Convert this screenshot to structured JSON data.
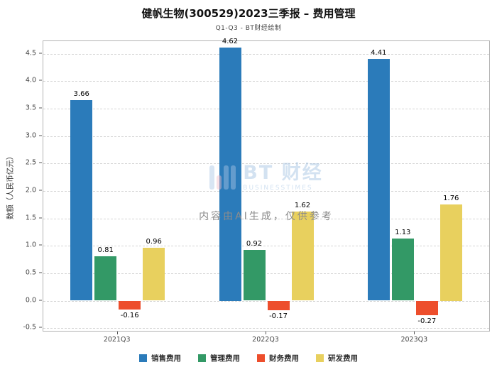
{
  "header": {
    "title": "健帆生物(300529)2023三季报 – 费用管理",
    "subtitle": "Q1-Q3 - BT财经绘制"
  },
  "watermark": {
    "brand": "BT 财经",
    "brand_sub": "BUSINESSTIMES",
    "disclaimer": "内容由AI生成，仅供参考"
  },
  "chart_data": {
    "type": "bar",
    "title": "健帆生物(300529)2023三季报 – 费用管理",
    "subtitle": "Q1-Q3 - BT财经绘制",
    "xlabel": "",
    "ylabel": "数额（人民币亿元）",
    "categories": [
      "2021Q3",
      "2022Q3",
      "2023Q3"
    ],
    "series": [
      {
        "name": "销售费用",
        "color": "#2b7bba",
        "values": [
          3.66,
          4.62,
          4.41
        ]
      },
      {
        "name": "管理费用",
        "color": "#339966",
        "values": [
          0.81,
          0.92,
          1.13
        ]
      },
      {
        "name": "财务费用",
        "color": "#ed4e2c",
        "values": [
          -0.16,
          -0.17,
          -0.27
        ]
      },
      {
        "name": "研发费用",
        "color": "#e8d05e",
        "values": [
          0.96,
          1.62,
          1.76
        ]
      }
    ],
    "yticks": [
      -0.5,
      0.0,
      0.5,
      1.0,
      1.5,
      2.0,
      2.5,
      3.0,
      3.5,
      4.0,
      4.5
    ],
    "ylim": [
      -0.55,
      4.73
    ],
    "grid": "dashed-horizontal",
    "legend_position": "bottom"
  }
}
